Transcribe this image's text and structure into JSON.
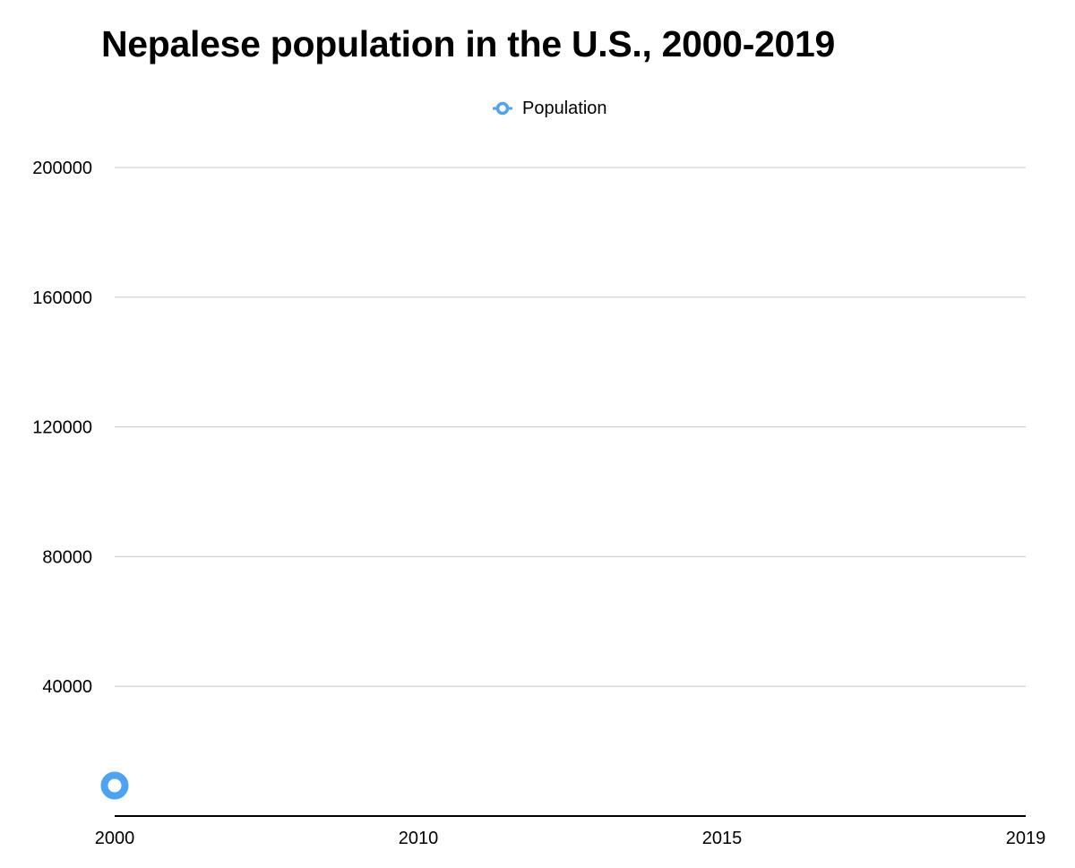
{
  "chart_data": {
    "type": "line",
    "title": "Nepalese population in the U.S., 2000-2019",
    "xlabel": "",
    "ylabel": "",
    "x": [
      "2000",
      "2010",
      "2015",
      "2019"
    ],
    "series": [
      {
        "name": "Population",
        "values": [
          9399,
          null,
          null,
          null
        ]
      }
    ],
    "ylim": [
      0,
      200000
    ],
    "y_ticks": [
      40000,
      80000,
      120000,
      160000,
      200000
    ],
    "grid": true,
    "legend_position": "top-center",
    "colors": {
      "series": "#4da3f3",
      "gridline": "#c8c8c8",
      "axis": "#000000",
      "text": "#000000"
    },
    "legend_marker_icon": "circle-marker-icon"
  }
}
